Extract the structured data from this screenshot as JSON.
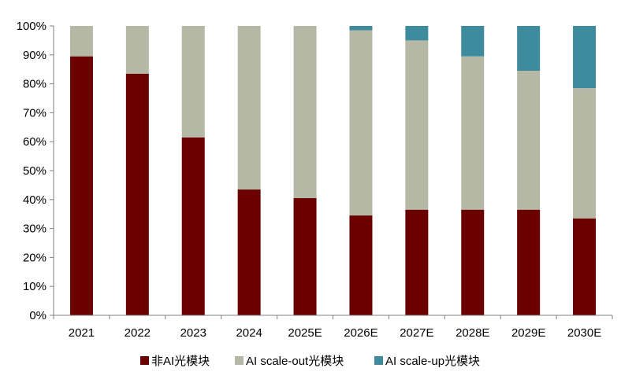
{
  "chart_data": {
    "type": "bar",
    "stacked": true,
    "percent": true,
    "categories": [
      "2021",
      "2022",
      "2023",
      "2024",
      "2025E",
      "2026E",
      "2027E",
      "2028E",
      "2029E",
      "2030E"
    ],
    "series": [
      {
        "name": "非AI光模块",
        "color": "#6b0000",
        "values": [
          89.5,
          83.5,
          61.5,
          43.5,
          40.5,
          34.5,
          36.5,
          36.5,
          36.5,
          33.5
        ]
      },
      {
        "name": "AI scale-out光模块",
        "color": "#b6b8a6",
        "values": [
          10.5,
          16.5,
          38.5,
          56.5,
          59.5,
          64.0,
          58.5,
          53.0,
          48.0,
          45.0
        ]
      },
      {
        "name": "AI scale-up光模块",
        "color": "#3f8b9e",
        "values": [
          0,
          0,
          0,
          0,
          0,
          1.5,
          5.0,
          10.5,
          15.5,
          21.5
        ]
      }
    ],
    "yticks": [
      "0%",
      "10%",
      "20%",
      "30%",
      "40%",
      "50%",
      "60%",
      "70%",
      "80%",
      "90%",
      "100%"
    ],
    "ylim": [
      0,
      100
    ],
    "grid": false,
    "legend_position": "bottom"
  }
}
